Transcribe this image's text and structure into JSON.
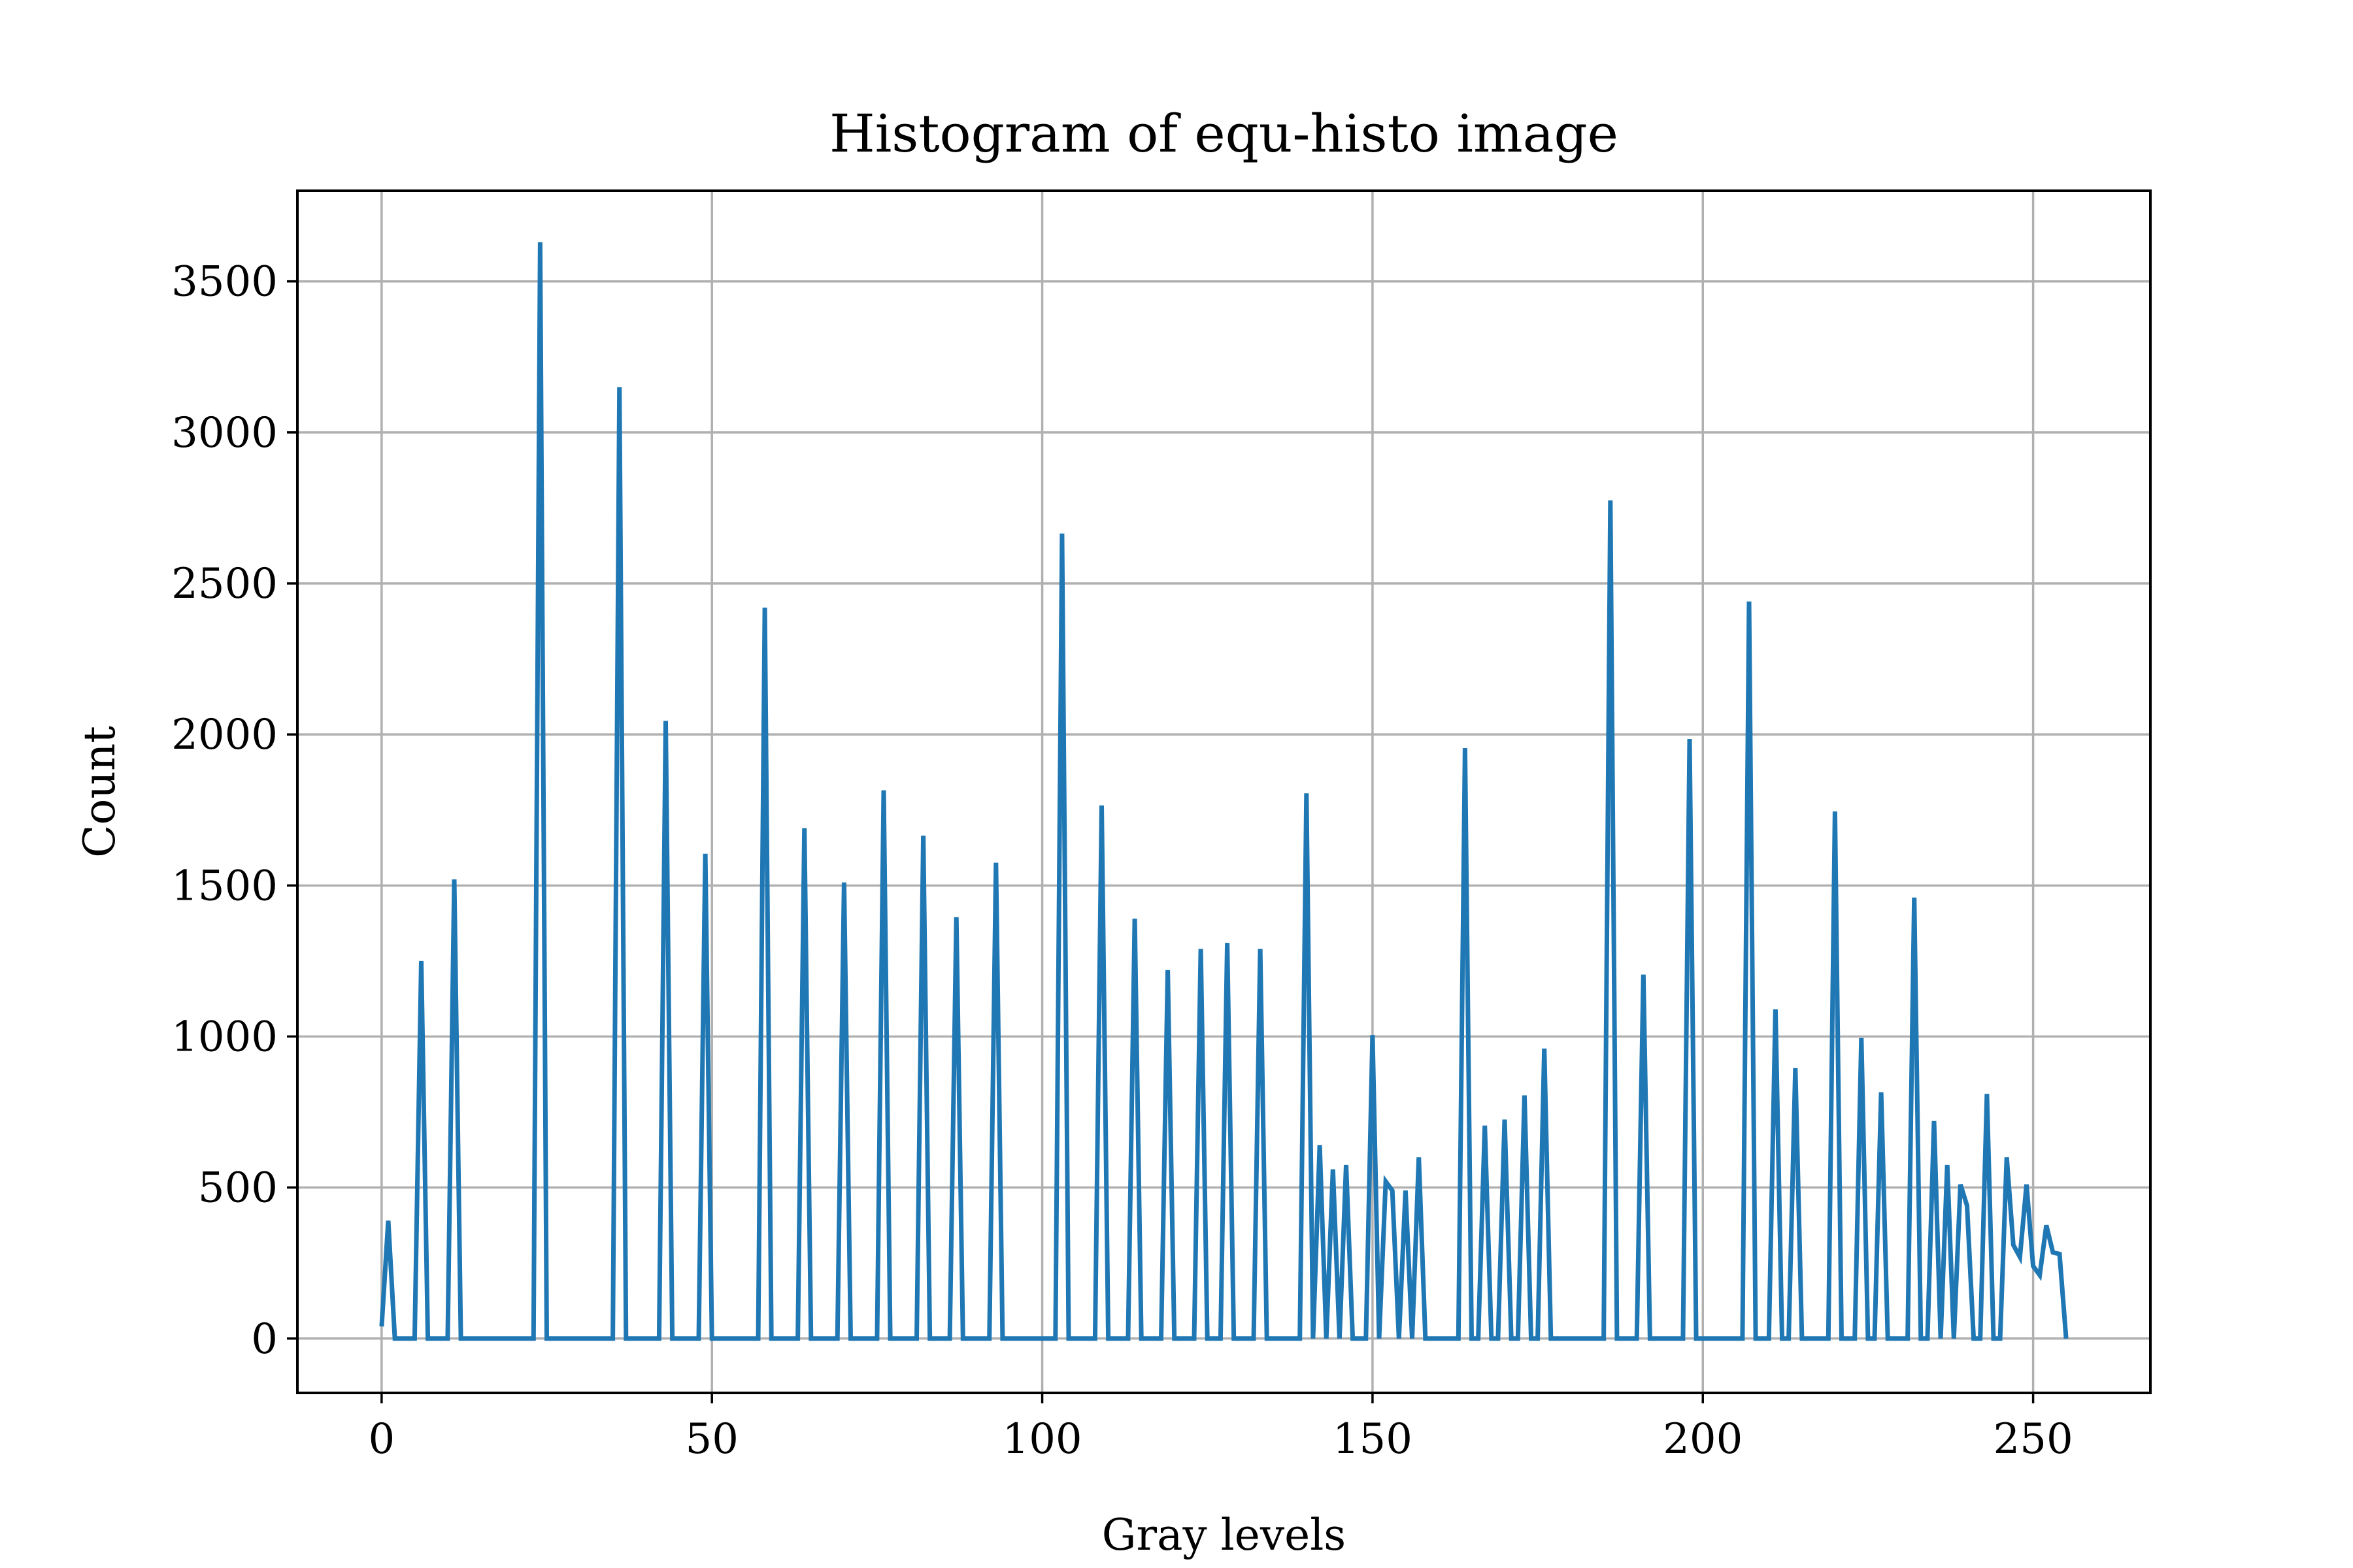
{
  "chart_data": {
    "type": "line",
    "title": "Histogram of equ-histo image",
    "xlabel": "Gray levels",
    "ylabel": "Count",
    "xlim": [
      -12.75,
      267.75
    ],
    "ylim": [
      -180,
      3800
    ],
    "xticks": [
      0,
      50,
      100,
      150,
      200,
      250
    ],
    "yticks": [
      0,
      500,
      1000,
      1500,
      2000,
      2500,
      3000,
      3500
    ],
    "grid": true,
    "series_color": "#1f77b4",
    "x": [
      0,
      1,
      2,
      3,
      4,
      5,
      6,
      7,
      8,
      9,
      10,
      11,
      12,
      13,
      14,
      15,
      16,
      17,
      18,
      19,
      20,
      21,
      22,
      23,
      24,
      25,
      26,
      27,
      28,
      29,
      30,
      31,
      32,
      33,
      34,
      35,
      36,
      37,
      38,
      39,
      40,
      41,
      42,
      43,
      44,
      45,
      46,
      47,
      48,
      49,
      50,
      51,
      52,
      53,
      54,
      55,
      56,
      57,
      58,
      59,
      60,
      61,
      62,
      63,
      64,
      65,
      66,
      67,
      68,
      69,
      70,
      71,
      72,
      73,
      74,
      75,
      76,
      77,
      78,
      79,
      80,
      81,
      82,
      83,
      84,
      85,
      86,
      87,
      88,
      89,
      90,
      91,
      92,
      93,
      94,
      95,
      96,
      97,
      98,
      99,
      100,
      101,
      102,
      103,
      104,
      105,
      106,
      107,
      108,
      109,
      110,
      111,
      112,
      113,
      114,
      115,
      116,
      117,
      118,
      119,
      120,
      121,
      122,
      123,
      124,
      125,
      126,
      127,
      128,
      129,
      130,
      131,
      132,
      133,
      134,
      135,
      136,
      137,
      138,
      139,
      140,
      141,
      142,
      143,
      144,
      145,
      146,
      147,
      148,
      149,
      150,
      151,
      152,
      153,
      154,
      155,
      156,
      157,
      158,
      159,
      160,
      161,
      162,
      163,
      164,
      165,
      166,
      167,
      168,
      169,
      170,
      171,
      172,
      173,
      174,
      175,
      176,
      177,
      178,
      179,
      180,
      181,
      182,
      183,
      184,
      185,
      186,
      187,
      188,
      189,
      190,
      191,
      192,
      193,
      194,
      195,
      196,
      197,
      198,
      199,
      200,
      201,
      202,
      203,
      204,
      205,
      206,
      207,
      208,
      209,
      210,
      211,
      212,
      213,
      214,
      215,
      216,
      217,
      218,
      219,
      220,
      221,
      222,
      223,
      224,
      225,
      226,
      227,
      228,
      229,
      230,
      231,
      232,
      233,
      234,
      235,
      236,
      237,
      238,
      239,
      240,
      241,
      242,
      243,
      244,
      245,
      246,
      247,
      248,
      249,
      250,
      251,
      252,
      253,
      254,
      255
    ],
    "y": [
      40,
      390,
      0,
      0,
      0,
      0,
      1250,
      0,
      0,
      0,
      0,
      1520,
      0,
      0,
      0,
      0,
      0,
      0,
      0,
      0,
      0,
      0,
      0,
      0,
      3630,
      0,
      0,
      0,
      0,
      0,
      0,
      0,
      0,
      0,
      0,
      0,
      3150,
      0,
      0,
      0,
      0,
      0,
      0,
      2045,
      0,
      0,
      0,
      0,
      0,
      1605,
      0,
      0,
      0,
      0,
      0,
      0,
      0,
      0,
      2420,
      0,
      0,
      0,
      0,
      0,
      1690,
      0,
      0,
      0,
      0,
      0,
      1510,
      0,
      0,
      0,
      0,
      0,
      1815,
      0,
      0,
      0,
      0,
      0,
      1665,
      0,
      0,
      0,
      0,
      1395,
      0,
      0,
      0,
      0,
      0,
      1575,
      0,
      0,
      0,
      0,
      0,
      0,
      0,
      0,
      0,
      2665,
      0,
      0,
      0,
      0,
      0,
      1765,
      0,
      0,
      0,
      0,
      1390,
      0,
      0,
      0,
      0,
      1220,
      0,
      0,
      0,
      0,
      1290,
      0,
      0,
      0,
      1310,
      0,
      0,
      0,
      0,
      1290,
      0,
      0,
      0,
      0,
      0,
      0,
      1805,
      0,
      640,
      0,
      560,
      0,
      575,
      0,
      0,
      0,
      1005,
      0,
      520,
      490,
      0,
      490,
      0,
      600,
      0,
      0,
      0,
      0,
      0,
      0,
      1955,
      0,
      0,
      705,
      0,
      0,
      725,
      0,
      0,
      805,
      0,
      0,
      960,
      0,
      0,
      0,
      0,
      0,
      0,
      0,
      0,
      0,
      2775,
      0,
      0,
      0,
      0,
      1205,
      0,
      0,
      0,
      0,
      0,
      0,
      1985,
      0,
      0,
      0,
      0,
      0,
      0,
      0,
      0,
      2440,
      0,
      0,
      0,
      1090,
      0,
      0,
      895,
      0,
      0,
      0,
      0,
      0,
      1745,
      0,
      0,
      0,
      995,
      0,
      0,
      815,
      0,
      0,
      0,
      0,
      1460,
      0,
      0,
      720,
      0,
      575,
      0,
      510,
      440,
      0,
      0,
      810,
      0,
      0,
      600,
      310,
      270,
      510,
      240,
      210,
      375,
      285,
      280,
      0
    ]
  }
}
